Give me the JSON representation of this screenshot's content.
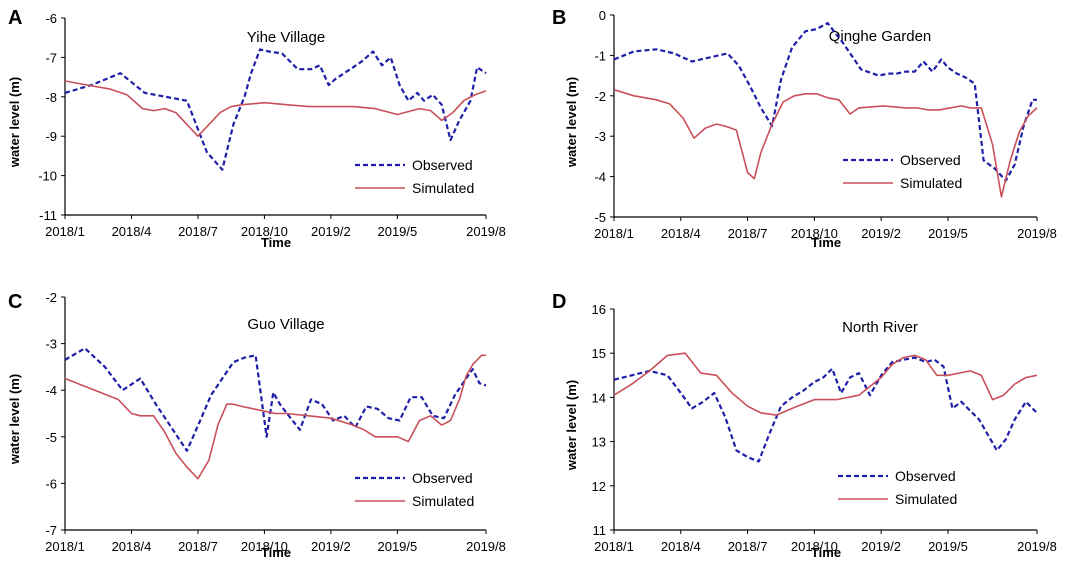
{
  "chart_data": [
    {
      "type": "line",
      "panel_label": "A",
      "title": "Yihe Village",
      "xlabel": "Time",
      "ylabel": "water level (m)",
      "ylim": [
        -11,
        -6
      ],
      "yticks": [
        -11,
        -10,
        -9,
        -8,
        -7,
        -6
      ],
      "xlim": [
        0,
        19
      ],
      "xticks": [
        {
          "label": "2018/1",
          "x": 0
        },
        {
          "label": "2018/4",
          "x": 3
        },
        {
          "label": "2018/7",
          "x": 6
        },
        {
          "label": "2018/10",
          "x": 9
        },
        {
          "label": "2019/2",
          "x": 12
        },
        {
          "label": "2019/5",
          "x": 15
        },
        {
          "label": "2019/8",
          "x": 19
        }
      ],
      "colors": {
        "observed": "#1f1fa8",
        "simulated": "#c9505a"
      },
      "series": [
        {
          "name": "Observed",
          "x": [
            0,
            1.2,
            2.5,
            3.6,
            5.5,
            6.4,
            7.1,
            7.6,
            8.1,
            8.4,
            8.8,
            9.2,
            9.8,
            10.5,
            11.1,
            11.5,
            11.9,
            12.2,
            12.6,
            13.0,
            13.4,
            13.9,
            14.3,
            14.7,
            15.1,
            15.5,
            15.9,
            16.2,
            16.6,
            17.0,
            17.4,
            17.8,
            18.3,
            18.6,
            19.0
          ],
          "y": [
            -7.9,
            -7.7,
            -7.4,
            -7.9,
            -8.1,
            -9.4,
            -9.85,
            -8.7,
            -8.0,
            -7.4,
            -6.8,
            -6.85,
            -6.9,
            -7.3,
            -7.3,
            -7.2,
            -7.7,
            -7.55,
            -7.4,
            -7.25,
            -7.1,
            -6.85,
            -7.2,
            -7.0,
            -7.7,
            -8.1,
            -7.9,
            -8.1,
            -7.95,
            -8.2,
            -9.1,
            -8.6,
            -8.1,
            -7.25,
            -7.4
          ]
        },
        {
          "name": "Simulated",
          "x": [
            0,
            1.0,
            2.0,
            2.8,
            3.5,
            4.0,
            4.5,
            5.0,
            5.5,
            6.0,
            6.5,
            7.0,
            7.5,
            8.0,
            9.0,
            10.0,
            11.0,
            12.0,
            13.0,
            14.0,
            15.0,
            16.0,
            16.5,
            17.0,
            17.5,
            18.0,
            18.5,
            19.0
          ],
          "y": [
            -7.6,
            -7.7,
            -7.8,
            -7.95,
            -8.3,
            -8.35,
            -8.3,
            -8.4,
            -8.7,
            -9.0,
            -8.7,
            -8.4,
            -8.25,
            -8.2,
            -8.15,
            -8.2,
            -8.25,
            -8.25,
            -8.25,
            -8.3,
            -8.45,
            -8.3,
            -8.35,
            -8.6,
            -8.4,
            -8.1,
            -7.95,
            -7.85
          ]
        }
      ]
    },
    {
      "type": "line",
      "panel_label": "B",
      "title": "Qinghe Garden",
      "xlabel": "Time",
      "ylabel": "water level (m)",
      "ylim": [
        -5,
        0
      ],
      "yticks": [
        -5,
        -4,
        -3,
        -2,
        -1,
        0
      ],
      "xlim": [
        0,
        19
      ],
      "xticks": [
        {
          "label": "2018/1",
          "x": 0
        },
        {
          "label": "2018/4",
          "x": 3
        },
        {
          "label": "2018/7",
          "x": 6
        },
        {
          "label": "2018/10",
          "x": 9
        },
        {
          "label": "2019/2",
          "x": 12
        },
        {
          "label": "2019/5",
          "x": 15
        },
        {
          "label": "2019/8",
          "x": 19
        }
      ],
      "colors": {
        "observed": "#1f1fa8",
        "simulated": "#c9505a"
      },
      "series": [
        {
          "name": "Observed",
          "x": [
            0,
            0.9,
            1.9,
            2.7,
            3.5,
            4.3,
            5.1,
            5.6,
            6.1,
            6.6,
            7.1,
            7.5,
            8.0,
            8.6,
            9.1,
            9.6,
            10.3,
            11.1,
            11.9,
            12.3,
            12.7,
            13.1,
            13.5,
            13.9,
            14.3,
            14.7,
            15.0,
            15.4,
            15.8,
            16.2,
            16.6,
            17.1,
            17.6,
            18.0,
            18.4,
            18.8,
            19.0
          ],
          "y": [
            -1.1,
            -0.9,
            -0.85,
            -0.95,
            -1.15,
            -1.05,
            -0.95,
            -1.25,
            -1.75,
            -2.3,
            -2.75,
            -1.6,
            -0.8,
            -0.4,
            -0.35,
            -0.2,
            -0.7,
            -1.35,
            -1.5,
            -1.45,
            -1.45,
            -1.4,
            -1.4,
            -1.15,
            -1.4,
            -1.1,
            -1.3,
            -1.45,
            -1.55,
            -1.7,
            -3.6,
            -3.8,
            -4.1,
            -3.7,
            -2.75,
            -2.1,
            -2.1
          ]
        },
        {
          "name": "Simulated",
          "x": [
            0,
            0.9,
            1.9,
            2.5,
            3.1,
            3.6,
            4.1,
            4.6,
            5.0,
            5.5,
            6.0,
            6.3,
            6.6,
            7.1,
            7.6,
            8.1,
            8.6,
            9.1,
            9.6,
            10.1,
            10.6,
            11.0,
            12.1,
            13.1,
            13.6,
            14.1,
            14.6,
            15.1,
            15.6,
            16.0,
            16.5,
            17.0,
            17.4,
            17.8,
            18.2,
            18.6,
            19.0
          ],
          "y": [
            -1.85,
            -2.0,
            -2.1,
            -2.2,
            -2.55,
            -3.05,
            -2.8,
            -2.7,
            -2.75,
            -2.85,
            -3.9,
            -4.05,
            -3.4,
            -2.7,
            -2.15,
            -2.0,
            -1.95,
            -1.95,
            -2.05,
            -2.1,
            -2.45,
            -2.3,
            -2.25,
            -2.3,
            -2.3,
            -2.35,
            -2.35,
            -2.3,
            -2.25,
            -2.3,
            -2.3,
            -3.2,
            -4.5,
            -3.6,
            -2.9,
            -2.5,
            -2.3
          ]
        }
      ]
    },
    {
      "type": "line",
      "panel_label": "C",
      "title": "Guo Village",
      "xlabel": "Time",
      "ylabel": "water level (m)",
      "ylim": [
        -7,
        -2
      ],
      "yticks": [
        -7,
        -6,
        -5,
        -4,
        -3,
        -2
      ],
      "xlim": [
        0,
        19
      ],
      "xticks": [
        {
          "label": "2018/1",
          "x": 0
        },
        {
          "label": "2018/4",
          "x": 3
        },
        {
          "label": "2018/7",
          "x": 6
        },
        {
          "label": "2018/10",
          "x": 9
        },
        {
          "label": "2019/2",
          "x": 12
        },
        {
          "label": "2019/5",
          "x": 15
        },
        {
          "label": "2019/8",
          "x": 19
        }
      ],
      "colors": {
        "observed": "#1f1fa8",
        "simulated": "#c9505a"
      },
      "series": [
        {
          "name": "Observed",
          "x": [
            0,
            0.9,
            1.8,
            2.6,
            3.4,
            4.1,
            4.8,
            5.5,
            6.1,
            6.6,
            7.1,
            7.6,
            8.1,
            8.6,
            9.1,
            9.4,
            9.7,
            10.1,
            10.6,
            11.1,
            11.6,
            12.1,
            12.6,
            13.1,
            13.6,
            14.1,
            14.6,
            15.1,
            15.6,
            16.1,
            16.6,
            17.1,
            17.6,
            18.1,
            18.4,
            18.7,
            19.0
          ],
          "y": [
            -3.35,
            -3.1,
            -3.5,
            -4.0,
            -3.75,
            -4.3,
            -4.8,
            -5.3,
            -4.65,
            -4.1,
            -3.75,
            -3.4,
            -3.3,
            -3.25,
            -5.0,
            -4.05,
            -4.3,
            -4.55,
            -4.85,
            -4.2,
            -4.3,
            -4.65,
            -4.55,
            -4.8,
            -4.35,
            -4.4,
            -4.6,
            -4.65,
            -4.15,
            -4.15,
            -4.55,
            -4.6,
            -4.1,
            -3.75,
            -3.55,
            -3.85,
            -3.9
          ]
        },
        {
          "name": "Simulated",
          "x": [
            0,
            0.8,
            1.6,
            2.4,
            3.0,
            3.4,
            4.0,
            4.5,
            5.0,
            5.5,
            6.0,
            6.5,
            6.9,
            7.3,
            7.6,
            8.0,
            8.5,
            9.0,
            9.5,
            10.0,
            11.0,
            12.0,
            13.0,
            13.5,
            14.0,
            14.5,
            15.0,
            15.5,
            16.0,
            16.5,
            17.0,
            17.4,
            17.8,
            18.1,
            18.4,
            18.8,
            19.0
          ],
          "y": [
            -3.75,
            -3.9,
            -4.05,
            -4.2,
            -4.5,
            -4.55,
            -4.55,
            -4.9,
            -5.35,
            -5.65,
            -5.9,
            -5.5,
            -4.75,
            -4.3,
            -4.3,
            -4.35,
            -4.4,
            -4.45,
            -4.5,
            -4.5,
            -4.55,
            -4.6,
            -4.75,
            -4.85,
            -5.0,
            -5.0,
            -5.0,
            -5.1,
            -4.65,
            -4.55,
            -4.75,
            -4.65,
            -4.2,
            -3.7,
            -3.45,
            -3.25,
            -3.25
          ]
        }
      ]
    },
    {
      "type": "line",
      "panel_label": "D",
      "title": "North River",
      "xlabel": "Time",
      "ylabel": "water level (m)",
      "ylim": [
        11,
        16
      ],
      "yticks": [
        11,
        12,
        13,
        14,
        15,
        16
      ],
      "xlim": [
        0,
        19
      ],
      "xticks": [
        {
          "label": "2018/1",
          "x": 0
        },
        {
          "label": "2018/4",
          "x": 3
        },
        {
          "label": "2018/7",
          "x": 6
        },
        {
          "label": "2018/10",
          "x": 9
        },
        {
          "label": "2019/2",
          "x": 12
        },
        {
          "label": "2019/5",
          "x": 15
        },
        {
          "label": "2019/8",
          "x": 19
        }
      ],
      "colors": {
        "observed": "#1f1fa8",
        "simulated": "#c9505a"
      },
      "series": [
        {
          "name": "Observed",
          "x": [
            0,
            0.8,
            1.6,
            2.4,
            3.0,
            3.5,
            4.0,
            4.5,
            5.0,
            5.5,
            6.0,
            6.5,
            7.0,
            7.5,
            8.0,
            8.5,
            9.0,
            9.4,
            9.8,
            10.2,
            10.6,
            11.0,
            11.5,
            12.0,
            12.5,
            13.0,
            13.5,
            14.0,
            14.4,
            14.8,
            15.2,
            15.6,
            16.0,
            16.4,
            16.8,
            17.2,
            17.6,
            18.0,
            18.5,
            19.0
          ],
          "y": [
            14.4,
            14.5,
            14.6,
            14.5,
            14.1,
            13.75,
            13.9,
            14.1,
            13.55,
            12.8,
            12.65,
            12.55,
            13.2,
            13.8,
            14.0,
            14.15,
            14.35,
            14.45,
            14.65,
            14.1,
            14.45,
            14.55,
            14.05,
            14.5,
            14.8,
            14.85,
            14.9,
            14.8,
            14.85,
            14.7,
            13.75,
            13.9,
            13.7,
            13.5,
            13.15,
            12.8,
            13.05,
            13.5,
            13.9,
            13.65
          ]
        },
        {
          "name": "Simulated",
          "x": [
            0,
            0.8,
            1.6,
            2.4,
            3.2,
            3.9,
            4.6,
            5.3,
            6.0,
            6.6,
            7.3,
            8.0,
            9.0,
            10.0,
            11.0,
            12.0,
            12.5,
            13.0,
            13.5,
            14.0,
            14.5,
            15.0,
            15.5,
            16.0,
            16.5,
            17.0,
            17.5,
            18.0,
            18.5,
            19.0
          ],
          "y": [
            14.05,
            14.3,
            14.6,
            14.95,
            15.0,
            14.55,
            14.5,
            14.1,
            13.8,
            13.65,
            13.6,
            13.75,
            13.95,
            13.95,
            14.05,
            14.45,
            14.75,
            14.9,
            14.95,
            14.85,
            14.5,
            14.5,
            14.55,
            14.6,
            14.5,
            13.95,
            14.05,
            14.3,
            14.45,
            14.5
          ]
        }
      ]
    }
  ]
}
